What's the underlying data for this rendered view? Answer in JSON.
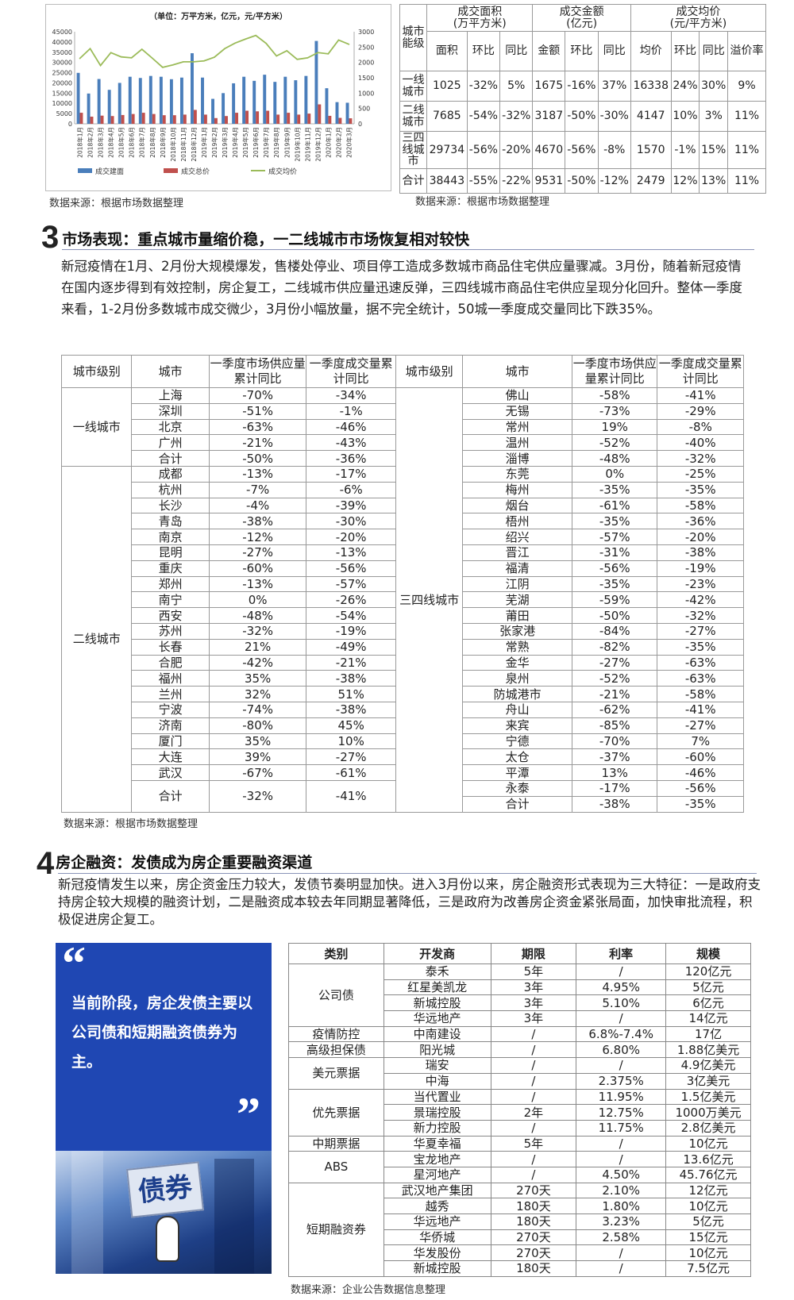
{
  "chart_data": {
    "type": "bar+line",
    "title": "（单位：万平方米，亿元，元/平方米）",
    "categories": [
      "2018年1月",
      "2018年2月",
      "2018年3月",
      "2018年4月",
      "2018年5月",
      "2018年6月",
      "2018年7月",
      "2018年8月",
      "2018年9月",
      "2018年10月",
      "2018年11月",
      "2018年12月",
      "2019年1月",
      "2019年2月",
      "2019年3月",
      "2019年4月",
      "2019年5月",
      "2019年6月",
      "2019年7月",
      "2019年8月",
      "2019年9月",
      "2019年10月",
      "2019年11月",
      "2019年12月",
      "2020年1月",
      "2020年2月",
      "2020年3月"
    ],
    "series": [
      {
        "name": "成交建面",
        "type": "bar",
        "axis": "left",
        "color": "#4a7ebb",
        "values": [
          24900,
          14800,
          21900,
          16600,
          20000,
          23000,
          22400,
          23400,
          23000,
          21800,
          22600,
          34500,
          22600,
          12200,
          15000,
          19800,
          23000,
          21000,
          24000,
          20500,
          23000,
          21300,
          23400,
          40500,
          17400,
          10600,
          10300
        ]
      },
      {
        "name": "成交总价",
        "type": "bar",
        "axis": "left",
        "color": "#c0504d",
        "values": [
          5400,
          3500,
          4000,
          3800,
          4300,
          4800,
          5400,
          4800,
          4200,
          4200,
          4500,
          6800,
          4500,
          2800,
          3800,
          5400,
          6400,
          6100,
          6400,
          4500,
          5400,
          4500,
          5000,
          9500,
          3900,
          2900,
          2700
        ]
      },
      {
        "name": "成交均价",
        "type": "line",
        "axis": "right",
        "color": "#9bbb59",
        "values": [
          2130,
          2450,
          1900,
          2320,
          2180,
          2150,
          2430,
          2140,
          1840,
          1920,
          2020,
          2020,
          2050,
          2170,
          2450,
          2630,
          2760,
          2880,
          2620,
          2210,
          2380,
          2100,
          2150,
          2320,
          2280,
          2730,
          2590
        ]
      }
    ],
    "ylim_left": [
      0,
      45000
    ],
    "yticks_left": [
      "0",
      "5000",
      "10000",
      "15000",
      "20000",
      "25000",
      "30000",
      "35000",
      "40000",
      "45000"
    ],
    "ylim_right": [
      0,
      3000
    ],
    "yticks_right": [
      "0",
      "500",
      "1000",
      "1500",
      "2000",
      "2500",
      "3000"
    ],
    "legend": "bottom",
    "grid": false
  },
  "top_table": {
    "corner": "城市能级",
    "groups": [
      "成交面积\n(万平方米)",
      "成交金额\n(亿元)",
      "成交均价\n(元/平方米)"
    ],
    "subheaders": [
      "面积",
      "环比",
      "同比",
      "金额",
      "环比",
      "同比",
      "均价",
      "环比",
      "同比",
      "溢价率"
    ],
    "rows": [
      {
        "label": "一线城市",
        "cells": [
          "1025",
          "-32%",
          "5%",
          "1675",
          "-16%",
          "37%",
          "16338",
          "24%",
          "30%",
          "9%"
        ]
      },
      {
        "label": "二线城市",
        "cells": [
          "7685",
          "-54%",
          "-32%",
          "3187",
          "-50%",
          "-30%",
          "4147",
          "10%",
          "3%",
          "11%"
        ]
      },
      {
        "label": "三四线城市",
        "cells": [
          "29734",
          "-56%",
          "-20%",
          "4670",
          "-56%",
          "-8%",
          "1570",
          "-1%",
          "15%",
          "11%"
        ]
      },
      {
        "label": "合计",
        "cells": [
          "38443",
          "-55%",
          "-22%",
          "9531",
          "-50%",
          "-12%",
          "2479",
          "12%",
          "13%",
          "11%"
        ]
      }
    ]
  },
  "source_chart": "数据来源：根据市场数据整理",
  "source_top_table": "数据来源：根据市场数据整理",
  "section3": {
    "number": "3",
    "title": "市场表现：重点城市量缩价稳，一二线城市市场恢复相对较快",
    "body": "新冠疫情在1月、2月份大规模爆发，售楼处停业、项目停工造成多数城市商品住宅供应量骤减。3月份，随着新冠疫情在国内逐步得到有效控制，房企复工，二线城市供应量迅速反弹，三四线城市商品住宅供应呈现分化回升。整体一季度来看，1-2月份多数城市成交微少，3月份小幅放量，据不完全统计，50城一季度成交量同比下跌35%。"
  },
  "city_table": {
    "headers_left": [
      "城市级别",
      "城市",
      "一季度市场供应量累计同比",
      "一季度成交量累计同比"
    ],
    "headers_right": [
      "城市级别",
      "城市",
      "一季度市场供应量累计同比",
      "一季度成交量累计同比"
    ],
    "left_groups": [
      {
        "tier": "一线城市",
        "rows": [
          [
            "上海",
            "-70%",
            "-34%"
          ],
          [
            "深圳",
            "-51%",
            "-1%"
          ],
          [
            "北京",
            "-63%",
            "-46%"
          ],
          [
            "广州",
            "-21%",
            "-43%"
          ],
          [
            "合计",
            "-50%",
            "-36%"
          ]
        ]
      },
      {
        "tier": "二线城市",
        "rows": [
          [
            "成都",
            "-13%",
            "-17%"
          ],
          [
            "杭州",
            "-7%",
            "-6%"
          ],
          [
            "长沙",
            "-4%",
            "-39%"
          ],
          [
            "青岛",
            "-38%",
            "-30%"
          ],
          [
            "南京",
            "-12%",
            "-20%"
          ],
          [
            "昆明",
            "-27%",
            "-13%"
          ],
          [
            "重庆",
            "-60%",
            "-56%"
          ],
          [
            "郑州",
            "-13%",
            "-57%"
          ],
          [
            "南宁",
            "0%",
            "-26%"
          ],
          [
            "西安",
            "-48%",
            "-54%"
          ],
          [
            "苏州",
            "-32%",
            "-19%"
          ],
          [
            "长春",
            "21%",
            "-49%"
          ],
          [
            "合肥",
            "-42%",
            "-21%"
          ],
          [
            "福州",
            "35%",
            "-38%"
          ],
          [
            "兰州",
            "32%",
            "51%"
          ],
          [
            "宁波",
            "-74%",
            "-38%"
          ],
          [
            "济南",
            "-80%",
            "45%"
          ],
          [
            "厦门",
            "35%",
            "10%"
          ],
          [
            "大连",
            "39%",
            "-27%"
          ],
          [
            "武汉",
            "-67%",
            "-61%"
          ],
          [
            "合计",
            "-32%",
            "-41%"
          ]
        ]
      }
    ],
    "right_group": {
      "tier": "三四线城市",
      "rows": [
        [
          "佛山",
          "-58%",
          "-41%"
        ],
        [
          "无锡",
          "-73%",
          "-29%"
        ],
        [
          "常州",
          "19%",
          "-8%"
        ],
        [
          "温州",
          "-52%",
          "-40%"
        ],
        [
          "淄博",
          "-48%",
          "-32%"
        ],
        [
          "东莞",
          "0%",
          "-25%"
        ],
        [
          "梅州",
          "-35%",
          "-35%"
        ],
        [
          "烟台",
          "-61%",
          "-58%"
        ],
        [
          "梧州",
          "-35%",
          "-36%"
        ],
        [
          "绍兴",
          "-57%",
          "-20%"
        ],
        [
          "晋江",
          "-31%",
          "-38%"
        ],
        [
          "福清",
          "-56%",
          "-19%"
        ],
        [
          "江阴",
          "-35%",
          "-23%"
        ],
        [
          "芜湖",
          "-59%",
          "-42%"
        ],
        [
          "莆田",
          "-50%",
          "-32%"
        ],
        [
          "张家港",
          "-84%",
          "-27%"
        ],
        [
          "常熟",
          "-82%",
          "-35%"
        ],
        [
          "金华",
          "-27%",
          "-63%"
        ],
        [
          "泉州",
          "-52%",
          "-63%"
        ],
        [
          "防城港市",
          "-21%",
          "-58%"
        ],
        [
          "舟山",
          "-62%",
          "-41%"
        ],
        [
          "来宾",
          "-85%",
          "-27%"
        ],
        [
          "宁德",
          "-70%",
          "7%"
        ],
        [
          "太仓",
          "-37%",
          "-60%"
        ],
        [
          "平潭",
          "13%",
          "-46%"
        ],
        [
          "永泰",
          "-17%",
          "-56%"
        ],
        [
          "合计",
          "-38%",
          "-35%"
        ]
      ]
    }
  },
  "source_city_table": "数据来源：根据市场数据整理",
  "section4": {
    "number": "4",
    "title": "房企融资：发债成为房企重要融资渠道",
    "body": "新冠疫情发生以来，房企资金压力较大，发债节奏明显加快。进入3月份以来，房企融资形式表现为三大特征：一是政府支持房企较大规模的融资计划，二是融资成本较去年同期显著降低，三是政府为改善房企资金紧张局面，加快审批流程，积极促进房企复工。"
  },
  "quote": {
    "open": "“",
    "text": "当前阶段，房企发债主要以公司债和短期融资债券为主。",
    "close": "”",
    "photo_sign": "债券",
    "color": "#1f47b3"
  },
  "fin_table": {
    "headers": [
      "类别",
      "开发商",
      "期限",
      "利率",
      "规模"
    ],
    "groups": [
      {
        "category": "公司债",
        "rows": [
          [
            "泰禾",
            "5年",
            "/",
            "120亿元"
          ],
          [
            "红星美凯龙",
            "3年",
            "4.95%",
            "5亿元"
          ],
          [
            "新城控股",
            "3年",
            "5.10%",
            "6亿元"
          ],
          [
            "华远地产",
            "3年",
            "/",
            "14亿元"
          ]
        ]
      },
      {
        "category": "疫情防控",
        "rows": [
          [
            "中南建设",
            "/",
            "6.8%-7.4%",
            "17亿"
          ]
        ]
      },
      {
        "category": "高级担保债",
        "rows": [
          [
            "阳光城",
            "/",
            "6.80%",
            "1.88亿美元"
          ]
        ]
      },
      {
        "category": "美元票据",
        "rows": [
          [
            "瑞安",
            "/",
            "/",
            "4.9亿美元"
          ],
          [
            "中海",
            "/",
            "2.375%",
            "3亿美元"
          ]
        ]
      },
      {
        "category": "优先票据",
        "rows": [
          [
            "当代置业",
            "/",
            "11.95%",
            "1.5亿美元"
          ],
          [
            "景瑞控股",
            "2年",
            "12.75%",
            "1000万美元"
          ],
          [
            "新力控股",
            "/",
            "11.75%",
            "2.8亿美元"
          ]
        ]
      },
      {
        "category": "中期票据",
        "rows": [
          [
            "华夏幸福",
            "5年",
            "/",
            "10亿元"
          ]
        ]
      },
      {
        "category": "ABS",
        "rows": [
          [
            "宝龙地产",
            "/",
            "/",
            "13.6亿元"
          ],
          [
            "星河地产",
            "/",
            "4.50%",
            "45.76亿元"
          ]
        ]
      },
      {
        "category": "短期融资券",
        "rows": [
          [
            "武汉地产集团",
            "270天",
            "2.10%",
            "12亿元"
          ],
          [
            "越秀",
            "180天",
            "1.80%",
            "10亿元"
          ],
          [
            "华远地产",
            "180天",
            "3.23%",
            "5亿元"
          ],
          [
            "华侨城",
            "270天",
            "2.58%",
            "15亿元"
          ],
          [
            "华发股份",
            "270天",
            "/",
            "10亿元"
          ],
          [
            "新城控股",
            "180天",
            "/",
            "7.5亿元"
          ]
        ]
      }
    ]
  },
  "source_fin_table": "数据来源：企业公告数据信息整理"
}
